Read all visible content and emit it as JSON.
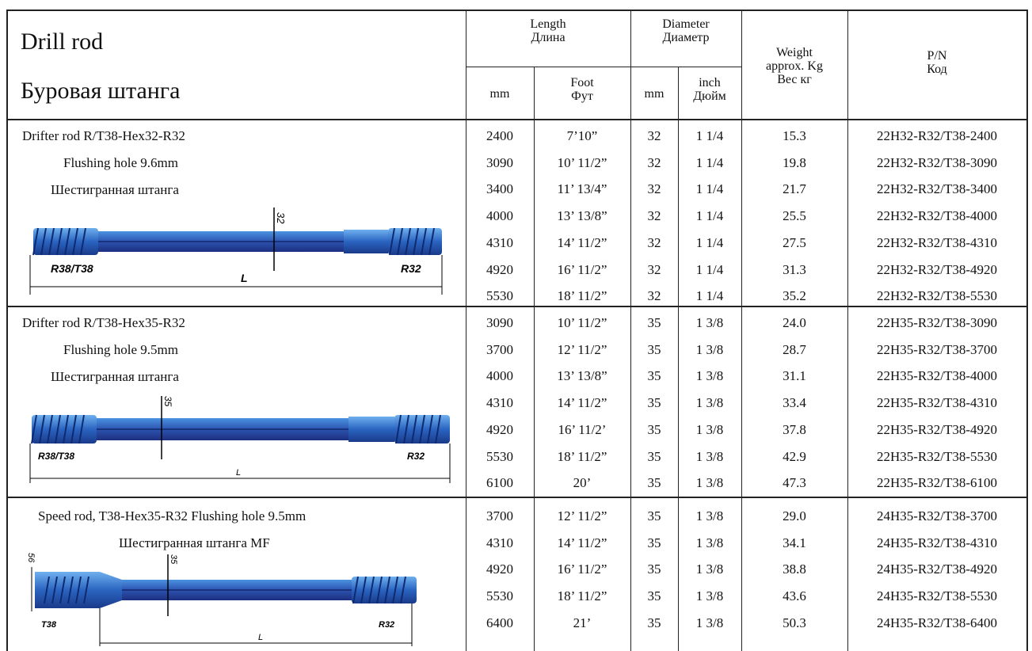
{
  "header": {
    "title_en": "Drill rod",
    "title_ru": "Буровая штанга",
    "length": "Length\nДлина",
    "diameter": "Diameter\nДиаметр",
    "length_mm": "mm",
    "length_foot": "Foot\nФут",
    "diameter_mm": "mm",
    "diameter_inch": "inch\nДюйм",
    "weight": "Weight\napprox. Kg\nВес кг",
    "pn": "P/N\nКод"
  },
  "sections": [
    {
      "lines": [
        "Drifter rod R/T38-Hex32-R32",
        "Flushing hole 9.6mm",
        "Шестигранная штанга"
      ],
      "drawing": {
        "left_label": "R38/T38",
        "right_label": "R32",
        "length_label": "L",
        "dim_label": "32"
      },
      "rows": [
        [
          "2400",
          "7’10”",
          "32",
          "1 1/4",
          "15.3",
          "22H32-R32/T38-2400"
        ],
        [
          "3090",
          "10’ 11/2”",
          "32",
          "1 1/4",
          "19.8",
          "22H32-R32/T38-3090"
        ],
        [
          "3400",
          "11’ 13/4”",
          "32",
          "1 1/4",
          "21.7",
          "22H32-R32/T38-3400"
        ],
        [
          "4000",
          "13’ 13/8”",
          "32",
          "1 1/4",
          "25.5",
          "22H32-R32/T38-4000"
        ],
        [
          "4310",
          "14’ 11/2”",
          "32",
          "1 1/4",
          "27.5",
          "22H32-R32/T38-4310"
        ],
        [
          "4920",
          "16’ 11/2”",
          "32",
          "1 1/4",
          "31.3",
          "22H32-R32/T38-4920"
        ],
        [
          "5530",
          "18’ 11/2”",
          "32",
          "1 1/4",
          "35.2",
          "22H32-R32/T38-5530"
        ]
      ]
    },
    {
      "lines": [
        "Drifter rod R/T38-Hex35-R32",
        "Flushing hole 9.5mm",
        "Шестигранная штанга"
      ],
      "drawing": {
        "left_label": "R38/T38",
        "right_label": "R32",
        "length_label": "L",
        "dim_label": "35"
      },
      "rows": [
        [
          "3090",
          "10’ 11/2”",
          "35",
          "1 3/8",
          "24.0",
          "22H35-R32/T38-3090"
        ],
        [
          "3700",
          "12’ 11/2”",
          "35",
          "1 3/8",
          "28.7",
          "22H35-R32/T38-3700"
        ],
        [
          "4000",
          "13’ 13/8”",
          "35",
          "1 3/8",
          "31.1",
          "22H35-R32/T38-4000"
        ],
        [
          "4310",
          "14’ 11/2”",
          "35",
          "1 3/8",
          "33.4",
          "22H35-R32/T38-4310"
        ],
        [
          "4920",
          "16’ 11/2’",
          "35",
          "1 3/8",
          "37.8",
          "22H35-R32/T38-4920"
        ],
        [
          "5530",
          "18’ 11/2”",
          "35",
          "1 3/8",
          "42.9",
          "22H35-R32/T38-5530"
        ],
        [
          "6100",
          "20’",
          "35",
          "1 3/8",
          "47.3",
          "22H35-R32/T38-6100"
        ]
      ]
    },
    {
      "lines": [
        "Speed rod, T38-Hex35-R32 Flushing hole 9.5mm",
        "Шестигранная штанга MF"
      ],
      "drawing": {
        "left_label": "T38",
        "right_label": "R32",
        "length_label": "L",
        "dim_label": "35",
        "dim2_label": "56"
      },
      "rows": [
        [
          "3700",
          "12’ 11/2”",
          "35",
          "1 3/8",
          "29.0",
          "24H35-R32/T38-3700"
        ],
        [
          "4310",
          "14’ 11/2”",
          "35",
          "1 3/8",
          "34.1",
          "24H35-R32/T38-4310"
        ],
        [
          "4920",
          "16’ 11/2”",
          "35",
          "1 3/8",
          "38.8",
          "24H35-R32/T38-4920"
        ],
        [
          "5530",
          "18’ 11/2”",
          "35",
          "1 3/8",
          "43.6",
          "24H35-R32/T38-5530"
        ],
        [
          "6400",
          "21’",
          "35",
          "1 3/8",
          "50.3",
          "24H35-R32/T38-6400"
        ]
      ]
    }
  ],
  "colors": {
    "rod_light": "#3b86d6",
    "rod_dark": "#1d3f93",
    "thread": "#2a64c0",
    "line": "#222222"
  }
}
